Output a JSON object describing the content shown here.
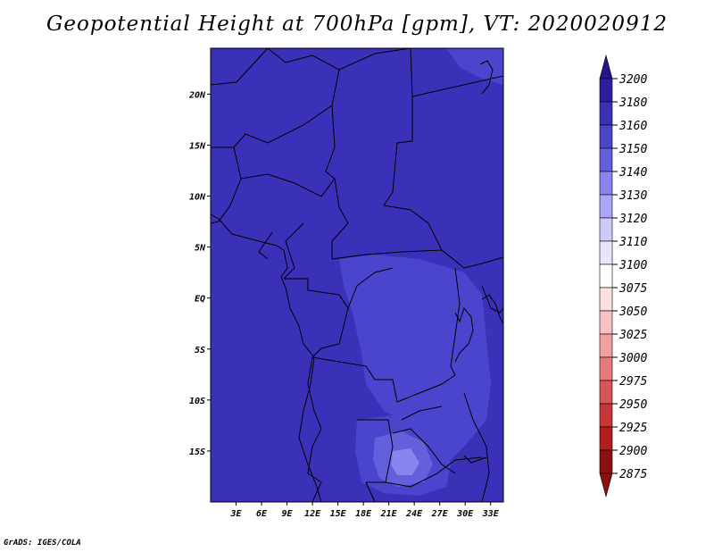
{
  "title": "Geopotential Height at 700hPa [gpm], VT: 2020020912",
  "credit": "GrADS: IGES/COLA",
  "map": {
    "lon_ticks": [
      "3E",
      "6E",
      "9E",
      "12E",
      "15E",
      "18E",
      "21E",
      "24E",
      "27E",
      "30E",
      "33E"
    ],
    "lat_ticks": [
      "20N",
      "15N",
      "10N",
      "5N",
      "EQ",
      "5S",
      "10S",
      "15S"
    ],
    "lon_range": [
      0,
      34.5
    ],
    "lat_range": [
      -20,
      24.5
    ]
  },
  "colorbar": {
    "levels": [
      "3200",
      "3180",
      "3160",
      "3150",
      "3140",
      "3130",
      "3120",
      "3110",
      "3100",
      "3075",
      "3050",
      "3025",
      "3000",
      "2975",
      "2950",
      "2925",
      "2900",
      "2875"
    ],
    "colors": [
      "#281489",
      "#2d1ea0",
      "#3a32b4",
      "#4a46c8",
      "#6460dc",
      "#8a84ee",
      "#aaa6f8",
      "#cecbfc",
      "#e8e6fe",
      "#ffffff",
      "#fde0e0",
      "#f9c2c2",
      "#f2a0a0",
      "#e77a7a",
      "#d85656",
      "#c63636",
      "#b21e1e",
      "#8c1010"
    ],
    "top_arrow_color": "#281489",
    "bottom_arrow_color": "#8c1010"
  },
  "field": {
    "base_color": "#3a31b8",
    "light_color": "#4a45cc",
    "lighter_color": "#6460dc",
    "lightest_color": "#8a84ee"
  }
}
